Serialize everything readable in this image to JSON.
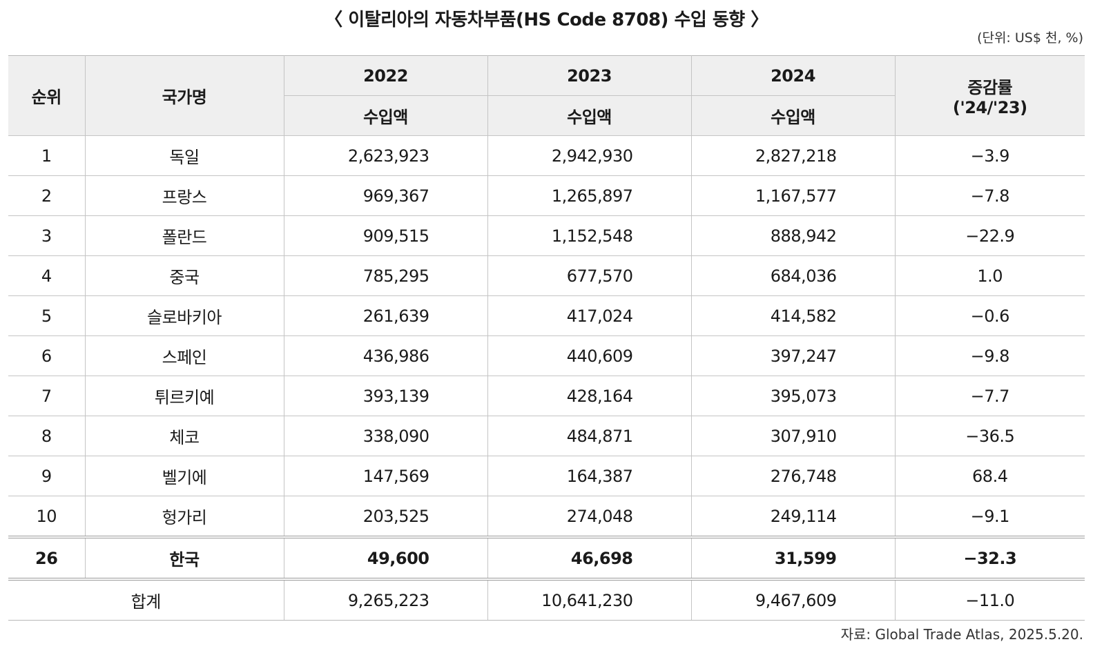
{
  "title": "〈 이탈리아의 자동차부품(HS Code 8708) 수입 동향 〉",
  "unit": "(단위: US$ 천, %)",
  "header": {
    "rank": "순위",
    "country": "국가명",
    "years": [
      "2022",
      "2023",
      "2024"
    ],
    "sub": "수입액",
    "rate_line1": "증감률",
    "rate_line2": "('24/'23)"
  },
  "rows": [
    {
      "rank": "1",
      "country": "독일",
      "v2022": "2,623,923",
      "v2023": "2,942,930",
      "v2024": "2,827,218",
      "rate": "−3.9"
    },
    {
      "rank": "2",
      "country": "프랑스",
      "v2022": "969,367",
      "v2023": "1,265,897",
      "v2024": "1,167,577",
      "rate": "−7.8"
    },
    {
      "rank": "3",
      "country": "폴란드",
      "v2022": "909,515",
      "v2023": "1,152,548",
      "v2024": "888,942",
      "rate": "−22.9"
    },
    {
      "rank": "4",
      "country": "중국",
      "v2022": "785,295",
      "v2023": "677,570",
      "v2024": "684,036",
      "rate": "1.0"
    },
    {
      "rank": "5",
      "country": "슬로바키아",
      "v2022": "261,639",
      "v2023": "417,024",
      "v2024": "414,582",
      "rate": "−0.6"
    },
    {
      "rank": "6",
      "country": "스페인",
      "v2022": "436,986",
      "v2023": "440,609",
      "v2024": "397,247",
      "rate": "−9.8"
    },
    {
      "rank": "7",
      "country": "튀르키예",
      "v2022": "393,139",
      "v2023": "428,164",
      "v2024": "395,073",
      "rate": "−7.7"
    },
    {
      "rank": "8",
      "country": "체코",
      "v2022": "338,090",
      "v2023": "484,871",
      "v2024": "307,910",
      "rate": "−36.5"
    },
    {
      "rank": "9",
      "country": "벨기에",
      "v2022": "147,569",
      "v2023": "164,387",
      "v2024": "276,748",
      "rate": "68.4"
    },
    {
      "rank": "10",
      "country": "헝가리",
      "v2022": "203,525",
      "v2023": "274,048",
      "v2024": "249,114",
      "rate": "−9.1"
    }
  ],
  "korea": {
    "rank": "26",
    "country": "한국",
    "v2022": "49,600",
    "v2023": "46,698",
    "v2024": "31,599",
    "rate": "−32.3"
  },
  "total": {
    "label": "합계",
    "v2022": "9,265,223",
    "v2023": "10,641,230",
    "v2024": "9,467,609",
    "rate": "−11.0"
  },
  "source": "자료: Global Trade Atlas, 2025.5.20."
}
